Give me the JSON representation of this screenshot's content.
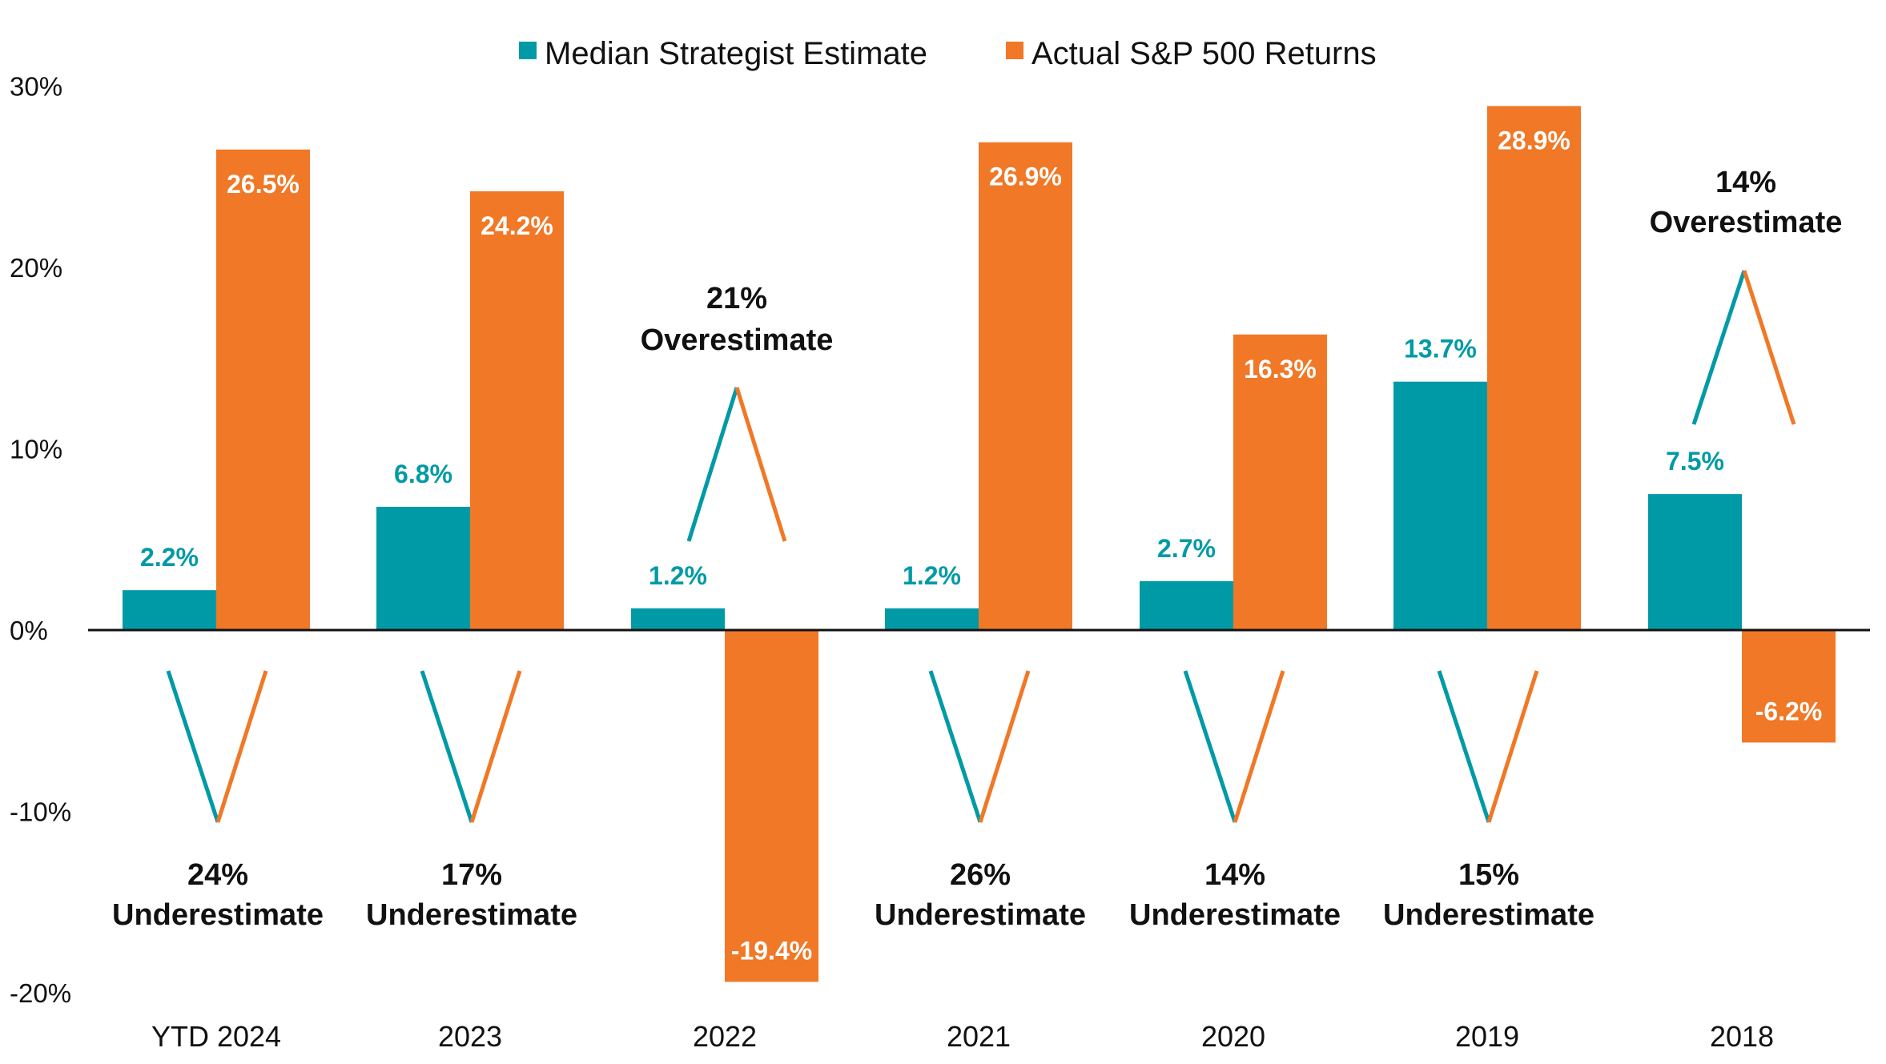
{
  "chart_data": {
    "type": "bar",
    "categories": [
      "YTD 2024",
      "2023",
      "2022",
      "2021",
      "2020",
      "2019",
      "2018"
    ],
    "series": [
      {
        "name": "Median Strategist Estimate",
        "color": "#009aa6",
        "values": [
          2.2,
          6.8,
          1.2,
          1.2,
          2.7,
          13.7,
          7.5
        ],
        "labels": [
          "2.2%",
          "6.8%",
          "1.2%",
          "1.2%",
          "2.7%",
          "13.7%",
          "7.5%"
        ]
      },
      {
        "name": "Actual S&P 500 Returns",
        "color": "#f07826",
        "values": [
          26.5,
          24.2,
          -19.4,
          26.9,
          16.3,
          28.9,
          -6.2
        ],
        "labels": [
          "26.5%",
          "24.2%",
          "-19.4%",
          "26.9%",
          "16.3%",
          "28.9%",
          "-6.2%"
        ]
      }
    ],
    "yticks": [
      {
        "value": 30,
        "label": "30%"
      },
      {
        "value": 20,
        "label": "20%"
      },
      {
        "value": 10,
        "label": "10%"
      },
      {
        "value": 0,
        "label": "0%"
      },
      {
        "value": -10,
        "label": "-10%"
      },
      {
        "value": -20,
        "label": "-20%"
      }
    ],
    "ylim": [
      -20,
      30
    ],
    "legend_position": "top-center",
    "annotations": [
      {
        "pct": "24%",
        "text": "Underestimate",
        "kind": "under"
      },
      {
        "pct": "17%",
        "text": "Underestimate",
        "kind": "under"
      },
      {
        "pct": "21%",
        "text": "Overestimate",
        "kind": "over"
      },
      {
        "pct": "26%",
        "text": "Underestimate",
        "kind": "under"
      },
      {
        "pct": "14%",
        "text": "Underestimate",
        "kind": "under"
      },
      {
        "pct": "15%",
        "text": "Underestimate",
        "kind": "under"
      },
      {
        "pct": "14%",
        "text": "Overestimate",
        "kind": "over"
      }
    ]
  }
}
